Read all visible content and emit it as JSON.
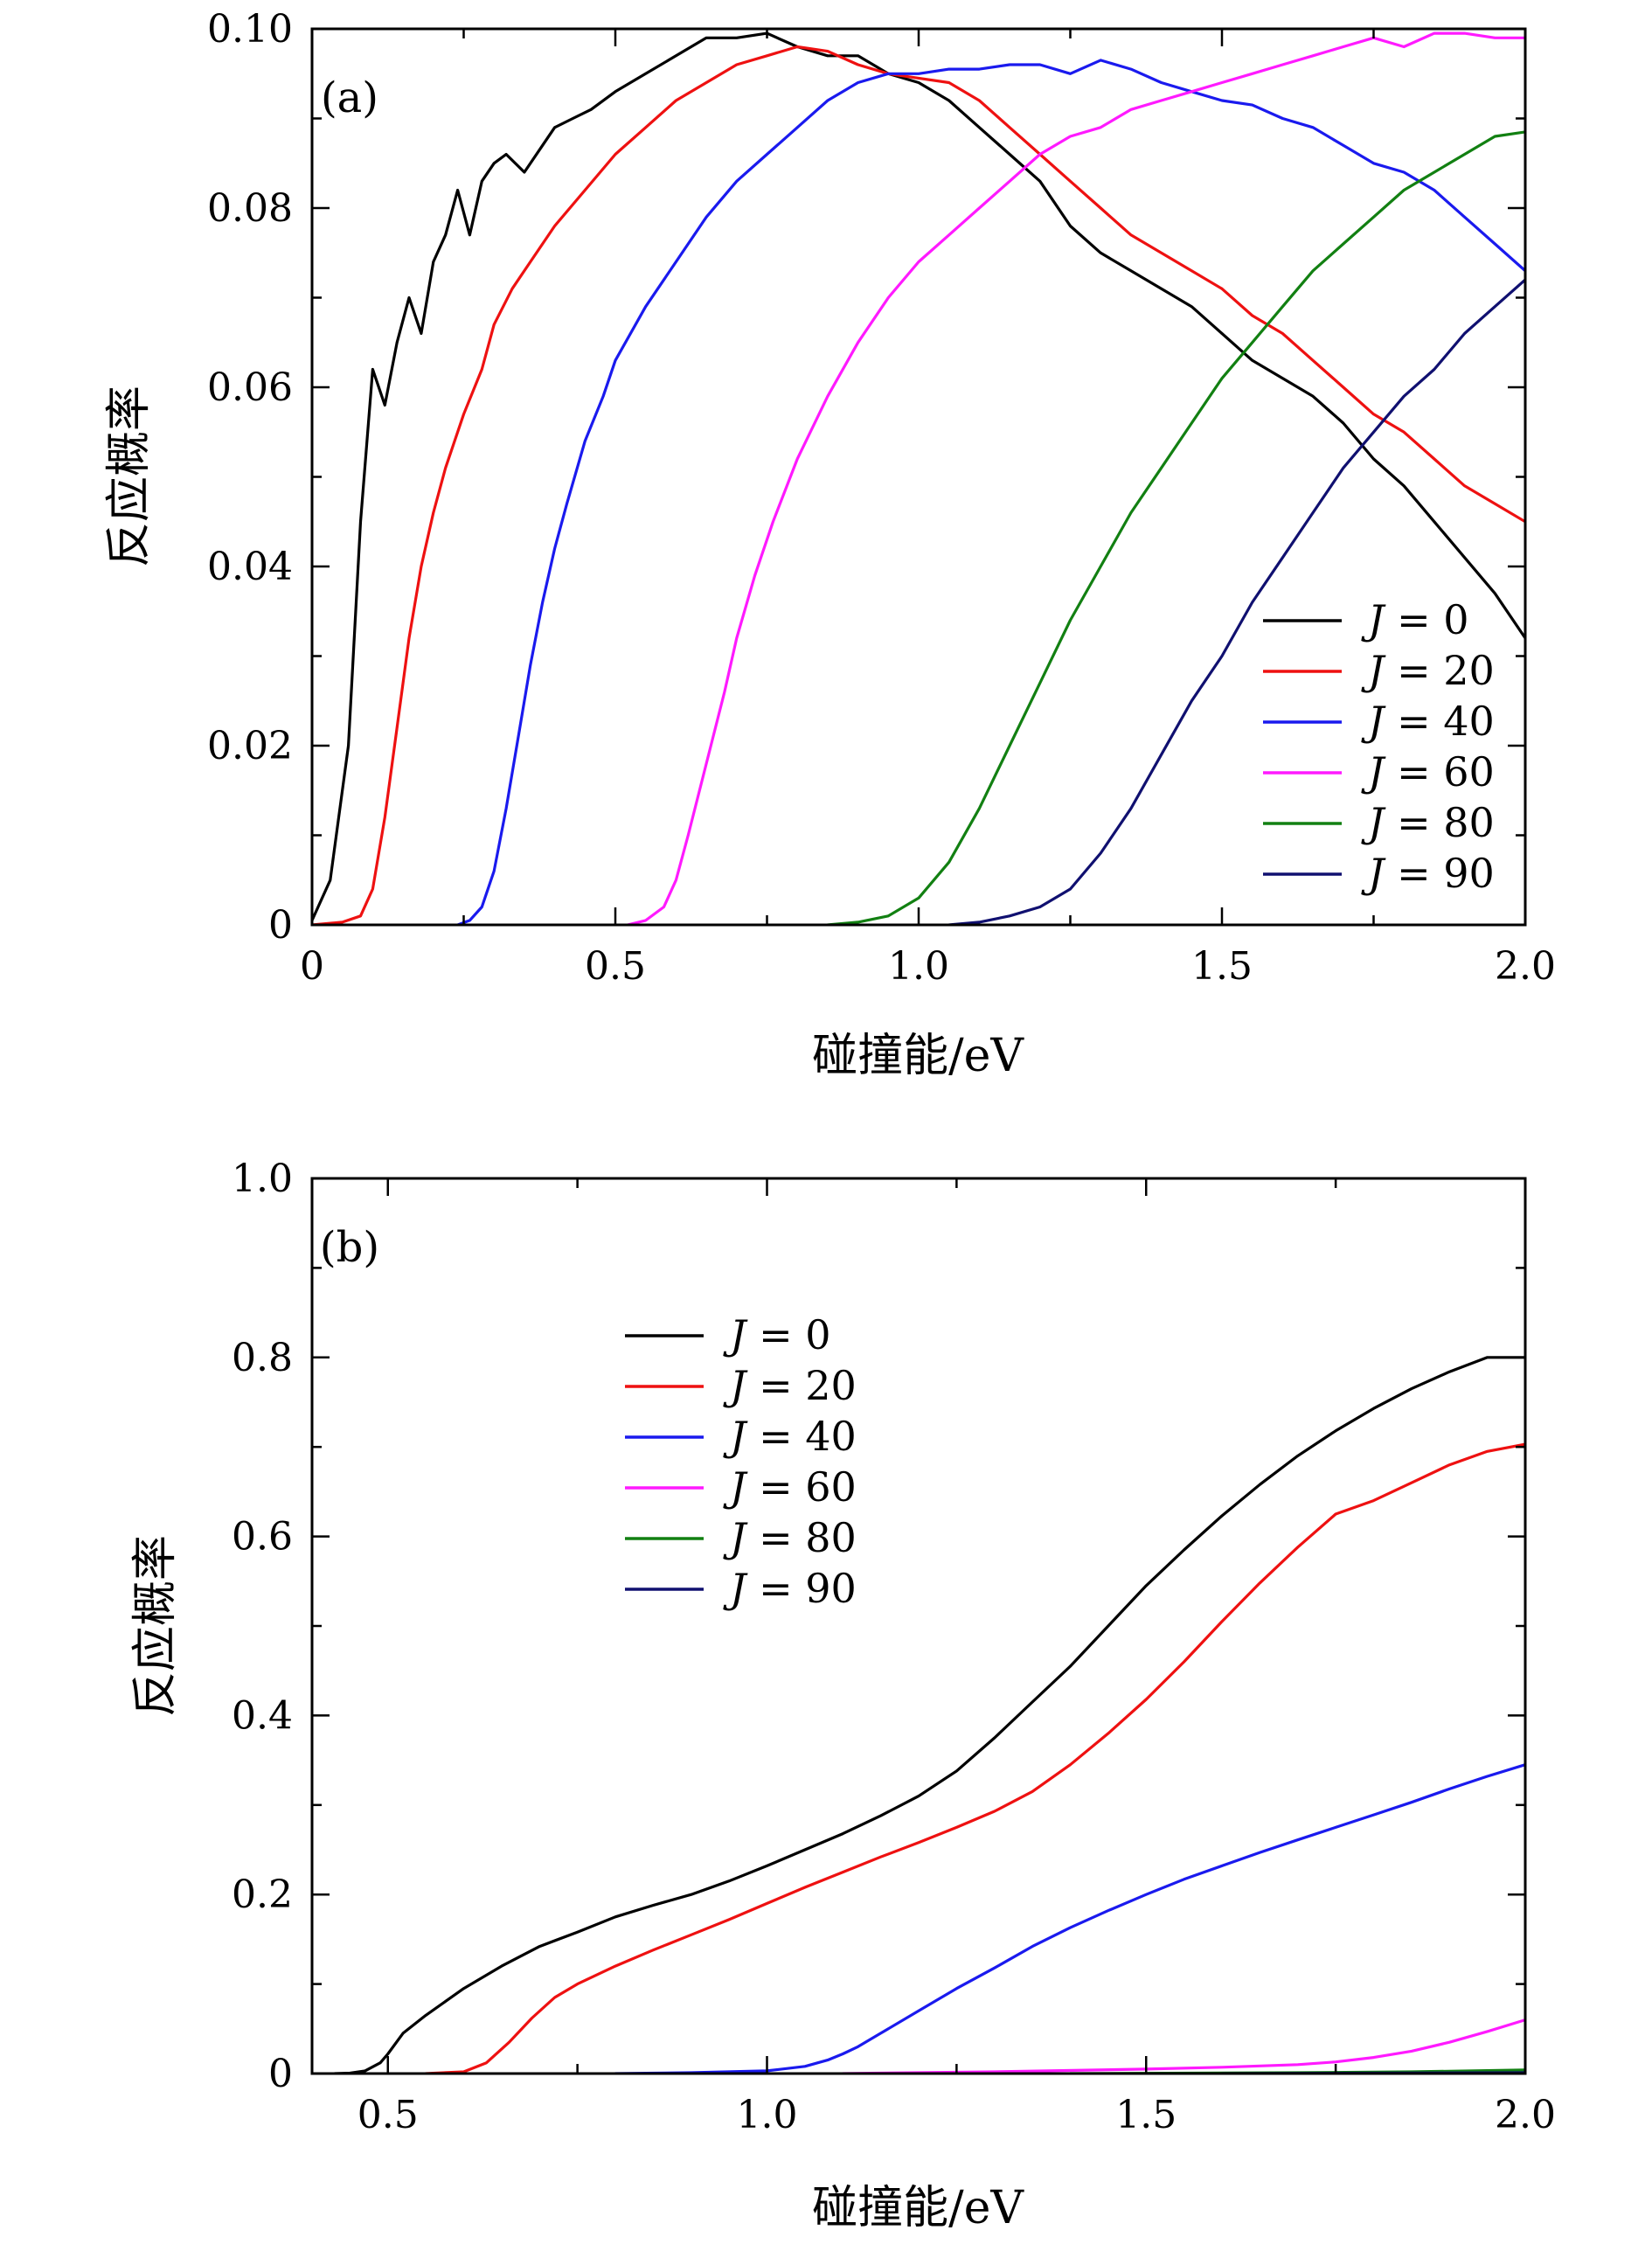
{
  "chart_data": [
    {
      "type": "line",
      "panel_label": "(a)",
      "xlabel": "碰撞能/eV",
      "ylabel": "反应概率",
      "xlim": [
        0,
        2.0
      ],
      "ylim": [
        0,
        0.1
      ],
      "xticks": [
        0,
        0.5,
        1.0,
        1.5,
        2.0
      ],
      "xtick_labels": [
        "0",
        "0.5",
        "1.0",
        "1.5",
        "2.0"
      ],
      "yticks": [
        0,
        0.02,
        0.04,
        0.06,
        0.08,
        0.1
      ],
      "ytick_labels": [
        "0",
        "0.02",
        "0.04",
        "0.06",
        "0.08",
        "0.10"
      ],
      "legend_position": "bottom-right",
      "series": [
        {
          "name": "J = 0",
          "var": "J",
          "val": "0",
          "color": "#000000",
          "x": [
            0,
            0.03,
            0.06,
            0.08,
            0.1,
            0.12,
            0.14,
            0.16,
            0.18,
            0.2,
            0.22,
            0.24,
            0.26,
            0.28,
            0.3,
            0.32,
            0.35,
            0.38,
            0.4,
            0.43,
            0.46,
            0.5,
            0.55,
            0.6,
            0.65,
            0.7,
            0.75,
            0.8,
            0.85,
            0.9,
            0.95,
            1.0,
            1.05,
            1.1,
            1.15,
            1.2,
            1.25,
            1.3,
            1.35,
            1.4,
            1.45,
            1.5,
            1.55,
            1.6,
            1.65,
            1.7,
            1.75,
            1.8,
            1.85,
            1.9,
            1.95,
            2.0
          ],
          "y": [
            0.0005,
            0.005,
            0.02,
            0.045,
            0.062,
            0.058,
            0.065,
            0.07,
            0.066,
            0.074,
            0.077,
            0.082,
            0.077,
            0.083,
            0.085,
            0.086,
            0.084,
            0.087,
            0.089,
            0.09,
            0.091,
            0.093,
            0.095,
            0.097,
            0.099,
            0.099,
            0.0995,
            0.098,
            0.097,
            0.097,
            0.095,
            0.094,
            0.092,
            0.089,
            0.086,
            0.083,
            0.078,
            0.075,
            0.073,
            0.071,
            0.069,
            0.066,
            0.063,
            0.061,
            0.059,
            0.056,
            0.052,
            0.049,
            0.045,
            0.041,
            0.037,
            0.032
          ]
        },
        {
          "name": "J = 20",
          "var": "J",
          "val": "20",
          "color": "#ee1111",
          "x": [
            0,
            0.05,
            0.08,
            0.1,
            0.12,
            0.14,
            0.16,
            0.18,
            0.2,
            0.22,
            0.25,
            0.28,
            0.3,
            0.33,
            0.36,
            0.4,
            0.45,
            0.5,
            0.55,
            0.6,
            0.65,
            0.7,
            0.75,
            0.8,
            0.85,
            0.9,
            0.95,
            1.0,
            1.05,
            1.1,
            1.15,
            1.2,
            1.25,
            1.3,
            1.35,
            1.4,
            1.45,
            1.5,
            1.55,
            1.6,
            1.65,
            1.7,
            1.75,
            1.8,
            1.85,
            1.9,
            1.95,
            2.0
          ],
          "y": [
            0,
            0.0003,
            0.001,
            0.004,
            0.012,
            0.022,
            0.032,
            0.04,
            0.046,
            0.051,
            0.057,
            0.062,
            0.067,
            0.071,
            0.074,
            0.078,
            0.082,
            0.086,
            0.089,
            0.092,
            0.094,
            0.096,
            0.097,
            0.098,
            0.0975,
            0.096,
            0.095,
            0.0945,
            0.094,
            0.092,
            0.089,
            0.086,
            0.083,
            0.08,
            0.077,
            0.075,
            0.073,
            0.071,
            0.068,
            0.066,
            0.063,
            0.06,
            0.057,
            0.055,
            0.052,
            0.049,
            0.047,
            0.045
          ]
        },
        {
          "name": "J = 40",
          "var": "J",
          "val": "40",
          "color": "#1a1aee",
          "x": [
            0.24,
            0.26,
            0.28,
            0.3,
            0.32,
            0.34,
            0.36,
            0.38,
            0.4,
            0.42,
            0.45,
            0.48,
            0.5,
            0.55,
            0.6,
            0.65,
            0.7,
            0.75,
            0.8,
            0.85,
            0.9,
            0.95,
            1.0,
            1.05,
            1.1,
            1.15,
            1.2,
            1.25,
            1.3,
            1.35,
            1.4,
            1.45,
            1.5,
            1.55,
            1.6,
            1.65,
            1.7,
            1.75,
            1.8,
            1.85,
            1.9,
            1.95,
            2.0
          ],
          "y": [
            0,
            0.0005,
            0.002,
            0.006,
            0.013,
            0.021,
            0.029,
            0.036,
            0.042,
            0.047,
            0.054,
            0.059,
            0.063,
            0.069,
            0.074,
            0.079,
            0.083,
            0.086,
            0.089,
            0.092,
            0.094,
            0.095,
            0.095,
            0.0955,
            0.0955,
            0.096,
            0.096,
            0.095,
            0.0965,
            0.0955,
            0.094,
            0.093,
            0.092,
            0.0915,
            0.09,
            0.089,
            0.087,
            0.085,
            0.084,
            0.082,
            0.079,
            0.076,
            0.073
          ]
        },
        {
          "name": "J = 60",
          "var": "J",
          "val": "60",
          "color": "#ff1aff",
          "x": [
            0.52,
            0.55,
            0.58,
            0.6,
            0.62,
            0.65,
            0.68,
            0.7,
            0.73,
            0.76,
            0.8,
            0.85,
            0.9,
            0.95,
            1.0,
            1.05,
            1.1,
            1.15,
            1.2,
            1.25,
            1.3,
            1.35,
            1.4,
            1.45,
            1.5,
            1.55,
            1.6,
            1.65,
            1.7,
            1.75,
            1.8,
            1.85,
            1.9,
            1.95,
            2.0
          ],
          "y": [
            0,
            0.0005,
            0.002,
            0.005,
            0.01,
            0.018,
            0.026,
            0.032,
            0.039,
            0.045,
            0.052,
            0.059,
            0.065,
            0.07,
            0.074,
            0.077,
            0.08,
            0.083,
            0.086,
            0.088,
            0.089,
            0.091,
            0.092,
            0.093,
            0.094,
            0.095,
            0.096,
            0.097,
            0.098,
            0.099,
            0.098,
            0.0995,
            0.0995,
            0.099,
            0.099
          ]
        },
        {
          "name": "J = 80",
          "var": "J",
          "val": "80",
          "color": "#128012",
          "x": [
            0.85,
            0.9,
            0.95,
            1.0,
            1.05,
            1.1,
            1.15,
            1.2,
            1.25,
            1.3,
            1.35,
            1.4,
            1.45,
            1.5,
            1.55,
            1.6,
            1.65,
            1.7,
            1.75,
            1.8,
            1.85,
            1.9,
            1.95,
            2.0
          ],
          "y": [
            0,
            0.0003,
            0.001,
            0.003,
            0.007,
            0.013,
            0.02,
            0.027,
            0.034,
            0.04,
            0.046,
            0.051,
            0.056,
            0.061,
            0.065,
            0.069,
            0.073,
            0.076,
            0.079,
            0.082,
            0.084,
            0.086,
            0.088,
            0.0885
          ]
        },
        {
          "name": "J = 90",
          "var": "J",
          "val": "90",
          "color": "#101070",
          "x": [
            1.05,
            1.1,
            1.15,
            1.2,
            1.25,
            1.3,
            1.35,
            1.4,
            1.45,
            1.5,
            1.55,
            1.6,
            1.65,
            1.7,
            1.75,
            1.8,
            1.85,
            1.9,
            1.95,
            2.0
          ],
          "y": [
            0,
            0.0003,
            0.001,
            0.002,
            0.004,
            0.008,
            0.013,
            0.019,
            0.025,
            0.03,
            0.036,
            0.041,
            0.046,
            0.051,
            0.055,
            0.059,
            0.062,
            0.066,
            0.069,
            0.072
          ]
        }
      ]
    },
    {
      "type": "line",
      "panel_label": "(b)",
      "xlabel": "碰撞能/eV",
      "ylabel": "反应概率",
      "xlim": [
        0.4,
        2.0
      ],
      "ylim": [
        0,
        1.0
      ],
      "xticks": [
        0.5,
        1.0,
        1.5,
        2.0
      ],
      "xtick_labels": [
        "0.5",
        "1.0",
        "1.5",
        "2.0"
      ],
      "yticks": [
        0,
        0.2,
        0.4,
        0.6,
        0.8,
        1.0
      ],
      "ytick_labels": [
        "0",
        "0.2",
        "0.4",
        "0.6",
        "0.8",
        "1.0"
      ],
      "legend_position": "upper-left",
      "series": [
        {
          "name": "J = 0",
          "var": "J",
          "val": "0",
          "color": "#000000",
          "x": [
            0.43,
            0.45,
            0.47,
            0.49,
            0.5,
            0.52,
            0.55,
            0.6,
            0.65,
            0.7,
            0.75,
            0.8,
            0.85,
            0.9,
            0.95,
            1.0,
            1.05,
            1.1,
            1.15,
            1.2,
            1.25,
            1.3,
            1.35,
            1.4,
            1.45,
            1.5,
            1.55,
            1.6,
            1.65,
            1.7,
            1.75,
            1.8,
            1.85,
            1.9,
            1.95,
            2.0
          ],
          "y": [
            0,
            0.0005,
            0.003,
            0.012,
            0.022,
            0.045,
            0.065,
            0.095,
            0.12,
            0.142,
            0.158,
            0.175,
            0.188,
            0.2,
            0.215,
            0.232,
            0.25,
            0.268,
            0.288,
            0.31,
            0.338,
            0.375,
            0.415,
            0.455,
            0.5,
            0.545,
            0.585,
            0.623,
            0.658,
            0.69,
            0.718,
            0.743,
            0.765,
            0.784,
            0.8,
            0.8
          ]
        },
        {
          "name": "J = 20",
          "var": "J",
          "val": "20",
          "color": "#ee1111",
          "x": [
            0.55,
            0.6,
            0.63,
            0.66,
            0.69,
            0.72,
            0.75,
            0.8,
            0.85,
            0.9,
            0.95,
            1.0,
            1.05,
            1.1,
            1.15,
            1.2,
            1.25,
            1.3,
            1.35,
            1.4,
            1.45,
            1.5,
            1.55,
            1.6,
            1.65,
            1.7,
            1.75,
            1.8,
            1.85,
            1.9,
            1.95,
            2.0
          ],
          "y": [
            0,
            0.002,
            0.012,
            0.035,
            0.062,
            0.085,
            0.1,
            0.12,
            0.138,
            0.155,
            0.172,
            0.19,
            0.208,
            0.225,
            0.242,
            0.258,
            0.275,
            0.293,
            0.315,
            0.345,
            0.38,
            0.418,
            0.46,
            0.505,
            0.548,
            0.588,
            0.625,
            0.64,
            0.66,
            0.68,
            0.695,
            0.703
          ]
        },
        {
          "name": "J = 40",
          "var": "J",
          "val": "40",
          "color": "#1a1aee",
          "x": [
            0.8,
            0.9,
            1.0,
            1.05,
            1.08,
            1.1,
            1.12,
            1.15,
            1.2,
            1.25,
            1.3,
            1.35,
            1.4,
            1.45,
            1.5,
            1.55,
            1.6,
            1.65,
            1.7,
            1.75,
            1.8,
            1.85,
            1.9,
            1.95,
            2.0
          ],
          "y": [
            0,
            0.001,
            0.003,
            0.008,
            0.015,
            0.022,
            0.03,
            0.045,
            0.07,
            0.095,
            0.118,
            0.142,
            0.163,
            0.182,
            0.2,
            0.217,
            0.232,
            0.247,
            0.261,
            0.275,
            0.289,
            0.303,
            0.318,
            0.332,
            0.345
          ]
        },
        {
          "name": "J = 60",
          "var": "J",
          "val": "60",
          "color": "#ff1aff",
          "x": [
            1.1,
            1.3,
            1.5,
            1.6,
            1.7,
            1.75,
            1.8,
            1.85,
            1.9,
            1.95,
            2.0
          ],
          "y": [
            0,
            0.002,
            0.005,
            0.007,
            0.01,
            0.013,
            0.018,
            0.025,
            0.035,
            0.047,
            0.06
          ]
        },
        {
          "name": "J = 80",
          "var": "J",
          "val": "80",
          "color": "#128012",
          "x": [
            1.4,
            1.7,
            1.85,
            2.0
          ],
          "y": [
            0,
            0.001,
            0.002,
            0.004
          ]
        },
        {
          "name": "J = 90",
          "var": "J",
          "val": "90",
          "color": "#101070",
          "x": [
            1.6,
            1.8,
            2.0
          ],
          "y": [
            0,
            0.0005,
            0.001
          ]
        }
      ]
    }
  ]
}
